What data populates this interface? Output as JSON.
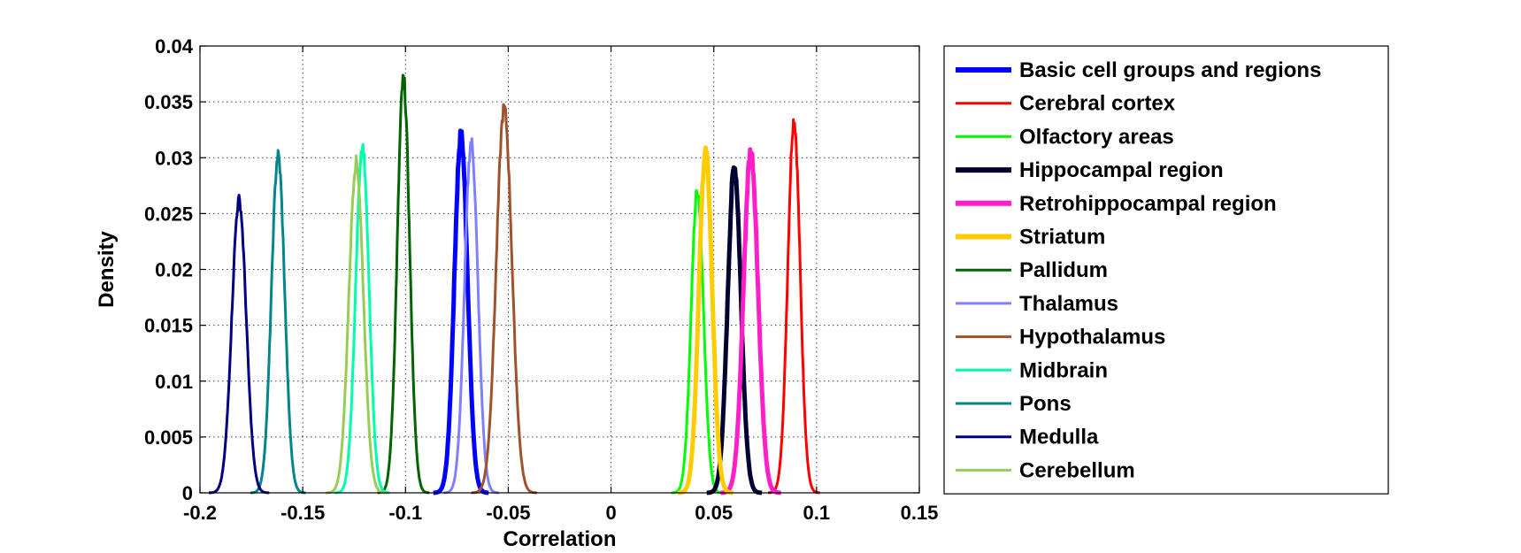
{
  "chart_data": {
    "type": "line",
    "title": "",
    "xlabel": "Correlation",
    "ylabel": "Density",
    "xlim": [
      -0.2,
      0.15
    ],
    "ylim": [
      0,
      0.04
    ],
    "x_ticks": [
      "-0.2",
      "-0.15",
      "-0.1",
      "-0.05",
      "0",
      "0.05",
      "0.1",
      "0.15"
    ],
    "y_ticks": [
      "0",
      "0.005",
      "0.01",
      "0.015",
      "0.02",
      "0.025",
      "0.03",
      "0.035",
      "0.04"
    ],
    "grid": true,
    "legend_position": "outside-right",
    "series": [
      {
        "name": "Basic cell groups and regions",
        "color": "#0000ff",
        "thick": true,
        "peak_x": -0.073,
        "peak_y": 0.032,
        "sigma": 0.0032
      },
      {
        "name": "Cerebral cortex",
        "color": "#ff0000",
        "thick": false,
        "peak_x": 0.089,
        "peak_y": 0.0334,
        "sigma": 0.003
      },
      {
        "name": "Olfactory areas",
        "color": "#00ff00",
        "thick": false,
        "peak_x": 0.042,
        "peak_y": 0.0271,
        "sigma": 0.003
      },
      {
        "name": "Hippocampal region",
        "color": "#000033",
        "thick": true,
        "peak_x": 0.06,
        "peak_y": 0.0292,
        "sigma": 0.0032
      },
      {
        "name": "Retrohippocampal region",
        "color": "#ff1ec8",
        "thick": true,
        "peak_x": 0.068,
        "peak_y": 0.0306,
        "sigma": 0.0035
      },
      {
        "name": "Striatum",
        "color": "#ffcc00",
        "thick": true,
        "peak_x": 0.046,
        "peak_y": 0.0306,
        "sigma": 0.0032
      },
      {
        "name": "Pallidum",
        "color": "#006400",
        "thick": false,
        "peak_x": -0.101,
        "peak_y": 0.037,
        "sigma": 0.003
      },
      {
        "name": "Thalamus",
        "color": "#8080ff",
        "thick": false,
        "peak_x": -0.068,
        "peak_y": 0.0314,
        "sigma": 0.0032
      },
      {
        "name": "Hypothalamus",
        "color": "#a0522d",
        "thick": false,
        "peak_x": -0.052,
        "peak_y": 0.0344,
        "sigma": 0.0038
      },
      {
        "name": "Midbrain",
        "color": "#00ffaa",
        "thick": false,
        "peak_x": -0.121,
        "peak_y": 0.0311,
        "sigma": 0.0032
      },
      {
        "name": "Pons",
        "color": "#00868b",
        "thick": false,
        "peak_x": -0.162,
        "peak_y": 0.0302,
        "sigma": 0.0032
      },
      {
        "name": "Medulla",
        "color": "#000080",
        "thick": false,
        "peak_x": -0.181,
        "peak_y": 0.0262,
        "sigma": 0.0035
      },
      {
        "name": "Cerebellum",
        "color": "#99cc55",
        "thick": false,
        "peak_x": -0.124,
        "peak_y": 0.0296,
        "sigma": 0.0035
      }
    ]
  }
}
